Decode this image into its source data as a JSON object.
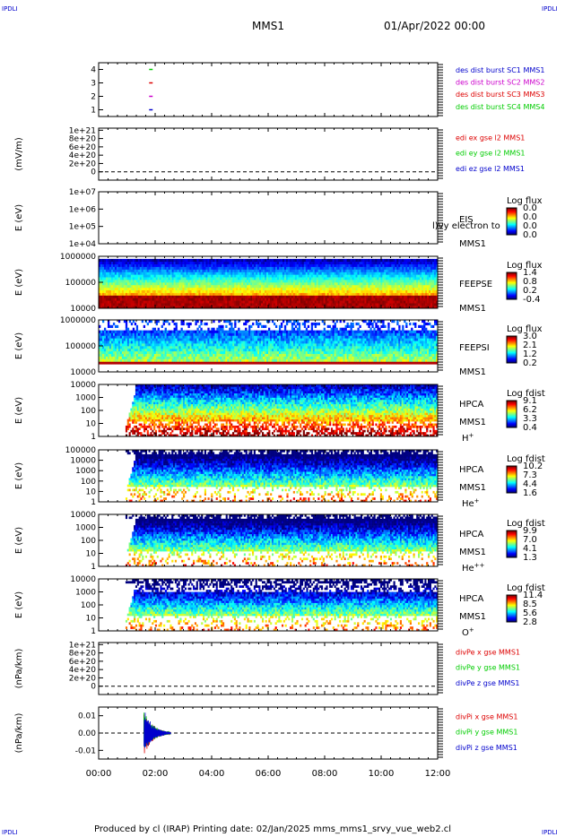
{
  "header": {
    "corner_label": "IPDLI",
    "spacecraft": "MMS1",
    "date": "01/Apr/2022 00:00"
  },
  "footer": {
    "text": "Produced by cl (IRAP)   Printing date: 02/Jan/2025   mms_mms1_srvy_vue_web2.cl"
  },
  "colors": {
    "blue": "#0000cc",
    "magenta": "#cc00cc",
    "red": "#dd0000",
    "green": "#00cc00"
  },
  "chart_data": [
    {
      "type": "scatter",
      "id": "burst",
      "ylabel": "",
      "ylim": [
        0.5,
        4.5
      ],
      "yticks": [
        "1",
        "2",
        "3",
        "4"
      ],
      "series": [
        {
          "name": "des dist burst SC1 MMS1",
          "color": "#0000cc",
          "x": [
            1.85
          ],
          "y": [
            1
          ]
        },
        {
          "name": "des dist burst SC2 MMS2",
          "color": "#cc00cc",
          "x": [
            1.85
          ],
          "y": [
            2
          ]
        },
        {
          "name": "des dist burst SC3 MMS3",
          "color": "#dd0000",
          "x": [
            1.85
          ],
          "y": [
            3
          ]
        },
        {
          "name": "des dist burst SC4 MMS4",
          "color": "#00cc00",
          "x": [
            1.85
          ],
          "y": [
            4
          ]
        }
      ]
    },
    {
      "type": "line",
      "id": "edi",
      "ylabel": "(mV/m)",
      "ylim": [
        -2e+20,
        1.05e+21
      ],
      "yticks": [
        "0",
        "2e+20",
        "4e+20",
        "6e+20",
        "8e+20",
        "1e+21"
      ],
      "zero_line": true,
      "series": [
        {
          "name": "edi ex gse l2 MMS1",
          "color": "#dd0000"
        },
        {
          "name": "edi ey gse l2 MMS1",
          "color": "#00cc00"
        },
        {
          "name": "edi ez gse l2 MMS1",
          "color": "#0000cc"
        }
      ]
    },
    {
      "type": "heatmap",
      "id": "eis",
      "ylabel": "E (eV)",
      "yscale": "log",
      "yticks": [
        "1e+04",
        "1e+05",
        "1e+06",
        "1e+07"
      ],
      "instrument": [
        "EIS",
        "MMS1"
      ],
      "overlay_text": "l)vy electron to",
      "colorbar_title": "Log flux",
      "colorbar_ticks": [
        "0.0",
        "0.0",
        "0.0",
        "0.0"
      ],
      "empty": true
    },
    {
      "type": "heatmap",
      "id": "feepse",
      "ylabel": "E (eV)",
      "yscale": "log",
      "yticks": [
        "10000",
        "100000",
        "1000000"
      ],
      "instrument": [
        "FEEPSE",
        "MMS1"
      ],
      "colorbar_title": "Log flux",
      "colorbar_ticks": [
        "1.4",
        "0.8",
        "0.2",
        "-0.4"
      ],
      "data_start_h": 0,
      "rows": 20
    },
    {
      "type": "heatmap",
      "id": "feepsi",
      "ylabel": "E (eV)",
      "yscale": "log",
      "yticks": [
        "10000",
        "100000",
        "1000000"
      ],
      "instrument": [
        "FEEPSI",
        "MMS1"
      ],
      "colorbar_title": "Log flux",
      "colorbar_ticks": [
        "3.0",
        "2.1",
        "1.2",
        "0.2"
      ],
      "data_start_h": 0,
      "rows": 20
    },
    {
      "type": "heatmap",
      "id": "hpca_h",
      "ylabel": "E (eV)",
      "yscale": "log",
      "yticks": [
        "1",
        "10",
        "100",
        "1000",
        "10000"
      ],
      "instrument": [
        "HPCA",
        "MMS1"
      ],
      "species": "H",
      "species_sup": "+",
      "colorbar_title": "Log fdist",
      "colorbar_ticks": [
        "9.1",
        "6.2",
        "3.3",
        "0.4"
      ],
      "data_start_h": 0.95,
      "rows": 24
    },
    {
      "type": "heatmap",
      "id": "hpca_he",
      "ylabel": "E (eV)",
      "yscale": "log",
      "yticks": [
        "1",
        "10",
        "100",
        "1000",
        "10000",
        "100000"
      ],
      "instrument": [
        "HPCA",
        "MMS1"
      ],
      "species": "He",
      "species_sup": "+",
      "colorbar_title": "Log fdist",
      "colorbar_ticks": [
        "10.2",
        "7.3",
        "4.4",
        "1.6"
      ],
      "data_start_h": 0.95,
      "rows": 24
    },
    {
      "type": "heatmap",
      "id": "hpca_he2",
      "ylabel": "E (eV)",
      "yscale": "log",
      "yticks": [
        "1",
        "10",
        "100",
        "1000",
        "10000"
      ],
      "instrument": [
        "HPCA",
        "MMS1"
      ],
      "species": "He",
      "species_sup": "++",
      "colorbar_title": "Log fdist",
      "colorbar_ticks": [
        "9.9",
        "7.0",
        "4.1",
        "1.3"
      ],
      "data_start_h": 0.95,
      "rows": 24
    },
    {
      "type": "heatmap",
      "id": "hpca_o",
      "ylabel": "E (eV)",
      "yscale": "log",
      "yticks": [
        "1",
        "10",
        "100",
        "1000",
        "10000"
      ],
      "instrument": [
        "HPCA",
        "MMS1"
      ],
      "species": "O",
      "species_sup": "+",
      "colorbar_title": "Log fdist",
      "colorbar_ticks": [
        "11.4",
        "8.5",
        "5.6",
        "2.8"
      ],
      "data_start_h": 0.95,
      "rows": 24
    },
    {
      "type": "line",
      "id": "divpe",
      "ylabel": "(nPa/km)",
      "ylim": [
        -2e+20,
        1.05e+21
      ],
      "yticks": [
        "0",
        "2e+20",
        "4e+20",
        "6e+20",
        "8e+20",
        "1e+21"
      ],
      "zero_line": true,
      "series": [
        {
          "name": "divPe x gse MMS1",
          "color": "#dd0000"
        },
        {
          "name": "divPe y gse MMS1",
          "color": "#00cc00"
        },
        {
          "name": "divPe z gse MMS1",
          "color": "#0000cc"
        }
      ]
    },
    {
      "type": "line",
      "id": "divpi",
      "ylabel": "(nPa/km)",
      "ylim": [
        -0.015,
        0.015
      ],
      "yticks": [
        "-0.01",
        "0.00",
        "0.01"
      ],
      "zero_line": true,
      "burst_window_h": [
        1.6,
        2.55
      ],
      "burst_peak": 0.014,
      "series": [
        {
          "name": "divPi x gse MMS1",
          "color": "#dd0000"
        },
        {
          "name": "divPi y gse MMS1",
          "color": "#00cc00"
        },
        {
          "name": "divPi z gse MMS1",
          "color": "#0000cc"
        }
      ]
    }
  ],
  "x_axis": {
    "xlim_hours": [
      0,
      12
    ],
    "tick_labels": [
      "00:00",
      "02:00",
      "04:00",
      "06:00",
      "08:00",
      "10:00",
      "12:00"
    ]
  }
}
